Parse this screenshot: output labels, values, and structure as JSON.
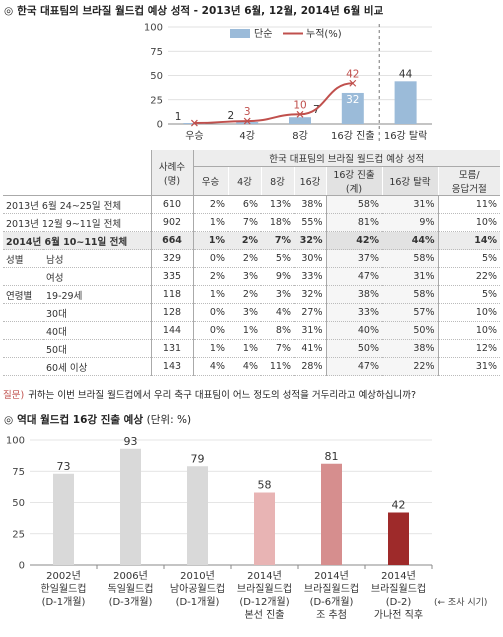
{
  "section1": {
    "mark": "◎",
    "title": "한국 대표팀의 브라질 월드컵 예상 성적 - 2013년 6월, 12월, 2014년 6월 비교"
  },
  "chart_data": [
    {
      "type": "bar+line",
      "categories": [
        "우승",
        "4강",
        "8강",
        "16강 진출",
        "16강 탈락"
      ],
      "ylim": [
        0,
        100
      ],
      "yticks": [
        0,
        25,
        50,
        75,
        100
      ],
      "grid": true,
      "legend_position": "top-center",
      "series": [
        {
          "name": "단순",
          "type": "bar",
          "values": [
            1,
            2,
            7,
            32,
            44
          ],
          "color": "#9bbbd9"
        },
        {
          "name": "누적(%)",
          "type": "line",
          "values": [
            1,
            3,
            10,
            42,
            null
          ],
          "color": "#c0504d"
        }
      ],
      "divider_before": "16강 탈락"
    },
    {
      "type": "bar",
      "title": "역대 월드컵 16강 진출 예상",
      "unit": "(단위: %)",
      "ylim": [
        0,
        100
      ],
      "yticks": [
        0,
        25,
        50,
        75,
        100
      ],
      "grid": true,
      "categories": [
        [
          "2002년",
          "한일월드컵",
          "(D-1개월)"
        ],
        [
          "2006년",
          "독일월드컵",
          "(D-3개월)"
        ],
        [
          "2010년",
          "남아공월드컵",
          "(D-1개월)"
        ],
        [
          "2014년",
          "브라질월드컵",
          "(D-12개월)",
          "본선 진출"
        ],
        [
          "2014년",
          "브라질월드컵",
          "(D-6개월)",
          "조 추첨"
        ],
        [
          "2014년",
          "브라질월드컵",
          "(D-2)",
          "가나전 직후"
        ]
      ],
      "values": [
        73,
        93,
        79,
        58,
        81,
        42
      ],
      "colors": [
        "#d9d9d9",
        "#d9d9d9",
        "#d9d9d9",
        "#e8b4b4",
        "#d68e8e",
        "#9e2a2a"
      ],
      "axis_note": "(← 조사 시기)"
    }
  ],
  "table": {
    "header_top": "한국 대표팀의 브라질 월드컵 예상 성적",
    "n_header": [
      "사례수",
      "(명)"
    ],
    "columns": [
      "우승",
      "4강",
      "8강",
      "16강",
      [
        "16강 진출",
        "(계)"
      ],
      "16강 탈락",
      [
        "모름/",
        "응답거절"
      ]
    ],
    "rows": [
      {
        "group": "",
        "label": "2013년 6월 24~25일 전체",
        "n": "610",
        "v": [
          "2%",
          "6%",
          "13%",
          "38%",
          "58%",
          "31%",
          "11%"
        ],
        "hl": false
      },
      {
        "group": "",
        "label": "2013년 12월 9~11일 전체",
        "n": "902",
        "v": [
          "1%",
          "7%",
          "18%",
          "55%",
          "81%",
          "9%",
          "10%"
        ],
        "hl": false
      },
      {
        "group": "",
        "label": "2014년 6월 10~11일 전체",
        "n": "664",
        "v": [
          "1%",
          "2%",
          "7%",
          "32%",
          "42%",
          "44%",
          "14%"
        ],
        "hl": true
      },
      {
        "group": "성별",
        "label": "남성",
        "n": "329",
        "v": [
          "0%",
          "2%",
          "5%",
          "30%",
          "37%",
          "58%",
          "5%"
        ],
        "hl": false
      },
      {
        "group": "",
        "label": "여성",
        "n": "335",
        "v": [
          "2%",
          "3%",
          "9%",
          "33%",
          "47%",
          "31%",
          "22%"
        ],
        "hl": false
      },
      {
        "group": "연령별",
        "label": "19-29세",
        "n": "118",
        "v": [
          "1%",
          "2%",
          "3%",
          "32%",
          "38%",
          "58%",
          "5%"
        ],
        "hl": false
      },
      {
        "group": "",
        "label": "30대",
        "n": "128",
        "v": [
          "0%",
          "3%",
          "4%",
          "27%",
          "33%",
          "57%",
          "10%"
        ],
        "hl": false
      },
      {
        "group": "",
        "label": "40대",
        "n": "144",
        "v": [
          "0%",
          "1%",
          "8%",
          "31%",
          "40%",
          "50%",
          "10%"
        ],
        "hl": false
      },
      {
        "group": "",
        "label": "50대",
        "n": "131",
        "v": [
          "1%",
          "1%",
          "7%",
          "41%",
          "50%",
          "38%",
          "12%"
        ],
        "hl": false
      },
      {
        "group": "",
        "label": "60세 이상",
        "n": "143",
        "v": [
          "4%",
          "4%",
          "11%",
          "28%",
          "47%",
          "22%",
          "31%"
        ],
        "hl": false
      }
    ]
  },
  "question": {
    "label": "질문)",
    "text": "귀하는 이번 브라질 월드컵에서 우리 축구 대표팀이 어느 정도의 성적을 거두리라고 예상하십니까?"
  },
  "section2": {
    "mark": "◎",
    "title": "역대 월드컵 16강 진출 예상",
    "unit": "(단위: %)"
  }
}
